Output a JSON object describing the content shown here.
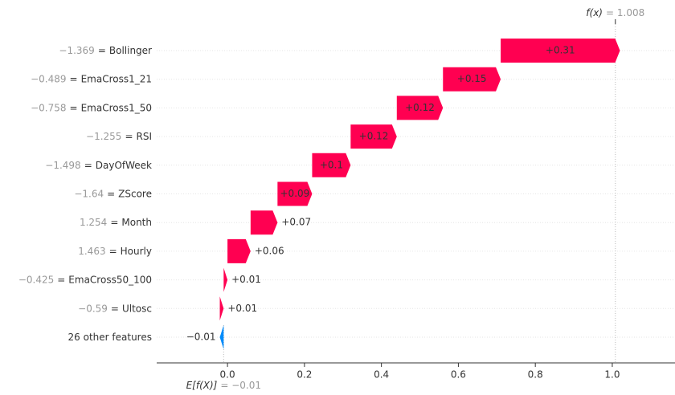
{
  "chart_data": {
    "type": "waterfall",
    "categories": [
      "Bollinger",
      "EmaCross1_21",
      "EmaCross1_50",
      "RSI",
      "DayOfWeek",
      "ZScore",
      "Month",
      "Hourly",
      "EmaCross50_100",
      "Ultosc",
      "26 other features"
    ],
    "feature_values": [
      "−1.369",
      "−0.489",
      "−0.758",
      "−1.255",
      "−1.498",
      "−1.64",
      "1.254",
      "1.463",
      "−0.425",
      "−0.59",
      null
    ],
    "value_separator": "=",
    "values": [
      0.31,
      0.15,
      0.12,
      0.12,
      0.1,
      0.09,
      0.07,
      0.06,
      0.01,
      0.01,
      -0.01
    ],
    "value_labels": [
      "+0.31",
      "+0.15",
      "+0.12",
      "+0.12",
      "+0.1",
      "+0.09",
      "+0.07",
      "+0.06",
      "+0.01",
      "+0.01",
      "−0.01"
    ],
    "positive_color": "#ff0051",
    "negative_color": "#008bfb",
    "base": {
      "label": "E[f(X)]",
      "value": -0.01,
      "value_label": "= −0.01"
    },
    "output": {
      "label": "f(x)",
      "value": 1.008,
      "value_label": "= 1.008"
    },
    "xlim": [
      -0.184,
      1.163
    ],
    "xticks": [
      {
        "value": 0,
        "label": "0.0"
      },
      0.2,
      0.4,
      0.6,
      0.8,
      {
        "value": 1,
        "label": "1.0"
      }
    ],
    "grid": true
  }
}
